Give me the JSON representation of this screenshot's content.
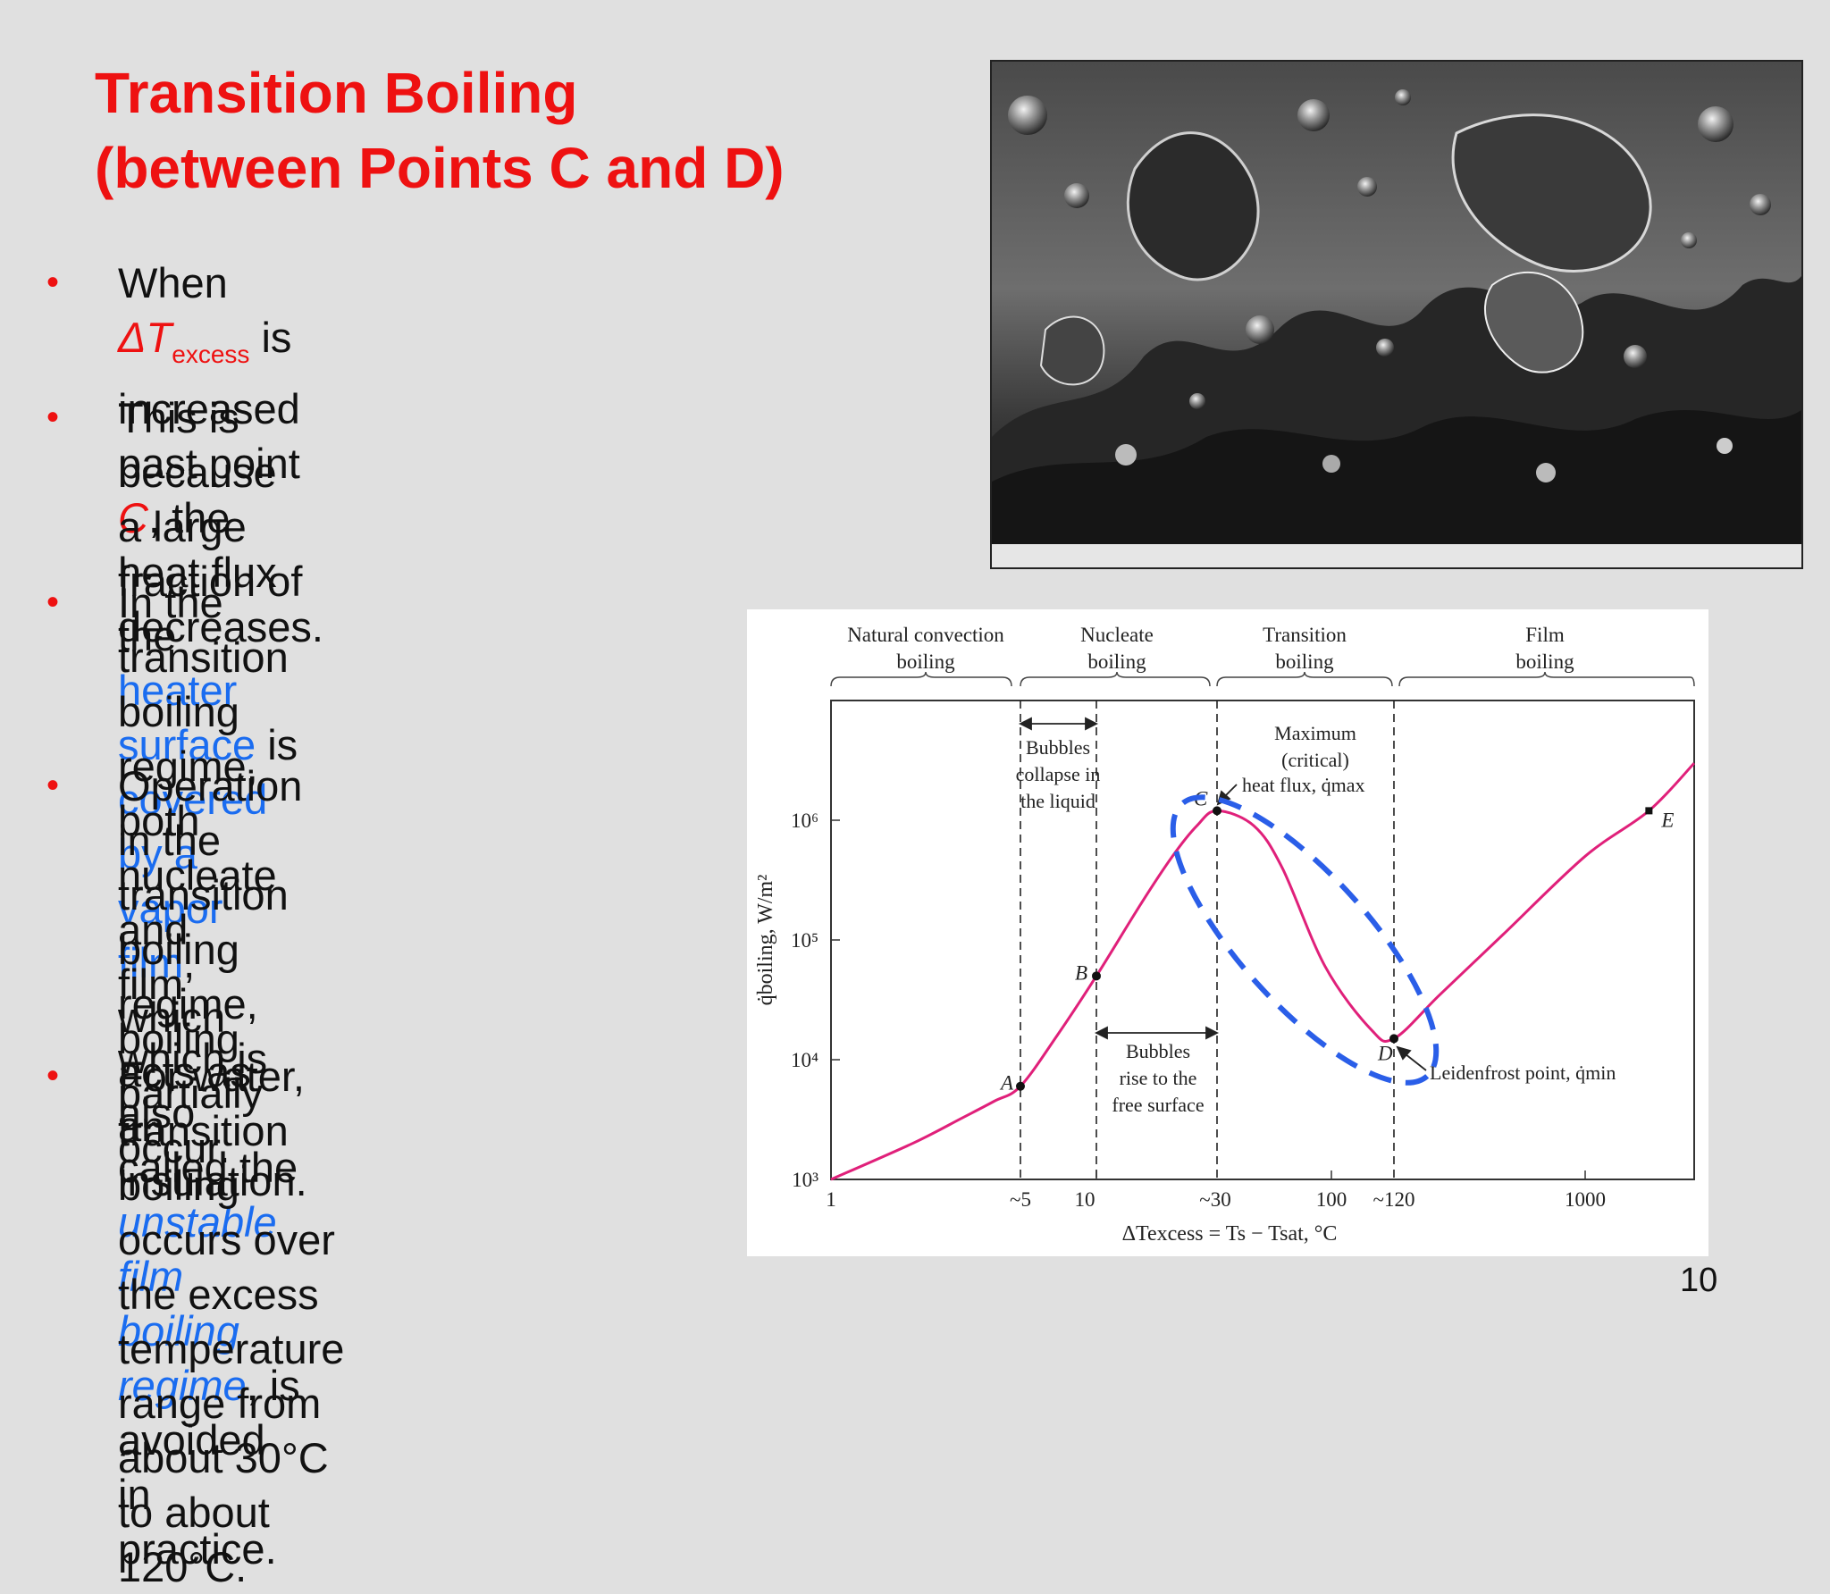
{
  "title": {
    "line1": "Transition Boiling",
    "line2": "(between Points C and D)"
  },
  "bullets": {
    "b1": {
      "pre": "When ",
      "delta": "ΔT",
      "sub": "excess",
      "post": " is increased past point",
      "c": "C",
      "rest": ", the heat flux decreases."
    },
    "b2": {
      "l1": "This is because a large fraction of the",
      "hs": "heater surface",
      "is": " is ",
      "cov": "covered by a vapor",
      "film": "film",
      "rest": ", which acts as an insulation."
    },
    "b3": {
      "l1": "In the transition boiling",
      "l2": "regime, both nucleate and",
      "l3": "film boiling partially occur."
    },
    "b4": {
      "l1": "Operation in the transition",
      "l2": "boiling regime, which is",
      "l3pre": "also called the ",
      "l3it": "unstable",
      "l4it": "film boiling regime",
      "l4post": ", is",
      "l5": "avoided in practice."
    },
    "b5": {
      "l1": "For water, transition boiling",
      "l2": "occurs over the excess",
      "l3": "temperature range from",
      "l4": "about 30°C to about 120°C."
    }
  },
  "photo": {
    "description_icon": "boiling-photo"
  },
  "chart_data": {
    "type": "line",
    "xscale": "log",
    "yscale": "log",
    "xlim": [
      1,
      2000
    ],
    "ylim": [
      1000,
      10000000
    ],
    "x_ticks": [
      "1",
      "~5",
      "10",
      "~30",
      "100",
      "~120",
      "1000"
    ],
    "y_ticks": [
      "10³",
      "10⁴",
      "10⁵",
      "10⁶"
    ],
    "xlabel": "ΔTexcess = Ts − Tsat, °C",
    "ylabel": "q̇boiling, W/m²",
    "regimes": [
      {
        "l1": "Natural convection",
        "l2": "boiling"
      },
      {
        "l1": "Nucleate",
        "l2": "boiling"
      },
      {
        "l1": "Transition",
        "l2": "boiling"
      },
      {
        "l1": "Film",
        "l2": "boiling"
      }
    ],
    "points": [
      {
        "label": "A",
        "x": 5,
        "y": 6000
      },
      {
        "label": "B",
        "x": 10,
        "y": 50000
      },
      {
        "label": "C",
        "x": 30,
        "y": 1200000
      },
      {
        "label": "D",
        "x": 120,
        "y": 15000
      },
      {
        "label": "E",
        "x": 1500,
        "y": 1200000
      }
    ],
    "series": [
      {
        "color": "#e0207a",
        "x": [
          1,
          2,
          3,
          4,
          5,
          7,
          10,
          15,
          20,
          25,
          30,
          40,
          50,
          70,
          100,
          120,
          200,
          400,
          1000,
          1500,
          2000
        ],
        "y": [
          1000,
          2000,
          3200,
          4500,
          6000,
          16000,
          50000,
          200000,
          500000,
          900000,
          1200000,
          900000,
          400000,
          60000,
          18000,
          15000,
          35000,
          110000,
          500000,
          1200000,
          3000000
        ]
      }
    ],
    "annotations": {
      "bubbles_collapse": [
        "Bubbles",
        "collapse in",
        "the liquid"
      ],
      "bubbles_rise": [
        "Bubbles",
        "rise to the",
        "free surface"
      ],
      "max_flux": [
        "Maximum",
        "(critical)",
        "heat flux, q̇max"
      ],
      "leidenfrost": "Leidenfrost point, q̇min"
    },
    "highlight_color": "#2a5ee8"
  },
  "page_number": "10"
}
